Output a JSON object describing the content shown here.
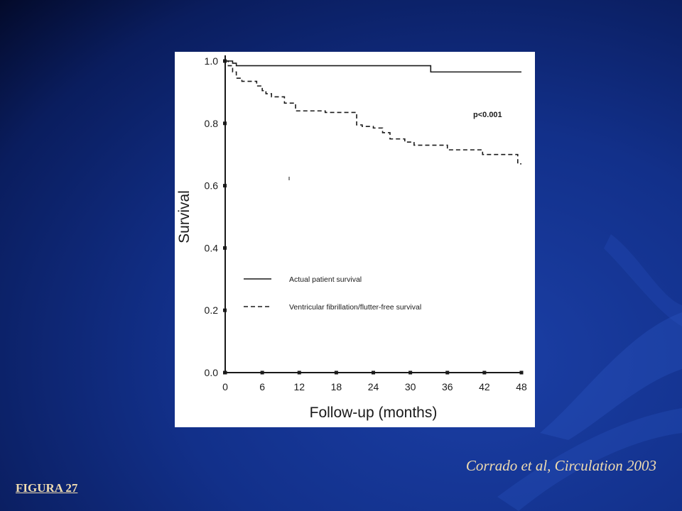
{
  "slide": {
    "citation": "Corrado et al, Circulation 2003",
    "figure_label": "FIGURA 27"
  },
  "chart_data": {
    "type": "line",
    "xlabel": "Follow-up (months)",
    "ylabel": "Survival",
    "xlim": [
      0,
      48
    ],
    "ylim": [
      0,
      1.0
    ],
    "x_ticks": [
      0,
      6,
      12,
      18,
      24,
      30,
      36,
      42,
      48
    ],
    "y_ticks": [
      0.0,
      0.2,
      0.4,
      0.6,
      0.8,
      1.0
    ],
    "y_tick_labels": [
      "0.0",
      "0.2",
      "0.4",
      "0.6",
      "0.8",
      "1.0"
    ],
    "annotation": "p<0.001",
    "grid": false,
    "legend_position": "lower-left",
    "series": [
      {
        "name": "Actual patient survival",
        "style": "solid",
        "color": "#1a1a1a",
        "step_x": [
          0,
          1.2,
          1.8,
          33.3,
          48
        ],
        "step_y": [
          1.0,
          0.993,
          0.985,
          0.965,
          0.965
        ]
      },
      {
        "name": "Ventricular fibrillation/flutter-free survival",
        "style": "dashed",
        "color": "#1a1a1a",
        "step_x": [
          0,
          0.5,
          1.2,
          1.8,
          2.7,
          5.1,
          6.0,
          6.6,
          7.5,
          9.6,
          11.4,
          12.0,
          16.2,
          18.0,
          21.3,
          22.2,
          24.0,
          25.5,
          26.7,
          29.1,
          30.6,
          36.0,
          41.7,
          47.4,
          48.0
        ],
        "step_y": [
          1.0,
          0.985,
          0.965,
          0.945,
          0.935,
          0.92,
          0.905,
          0.895,
          0.885,
          0.865,
          0.84,
          0.84,
          0.835,
          0.835,
          0.795,
          0.79,
          0.785,
          0.77,
          0.75,
          0.74,
          0.73,
          0.715,
          0.7,
          0.67,
          0.67
        ]
      }
    ]
  }
}
